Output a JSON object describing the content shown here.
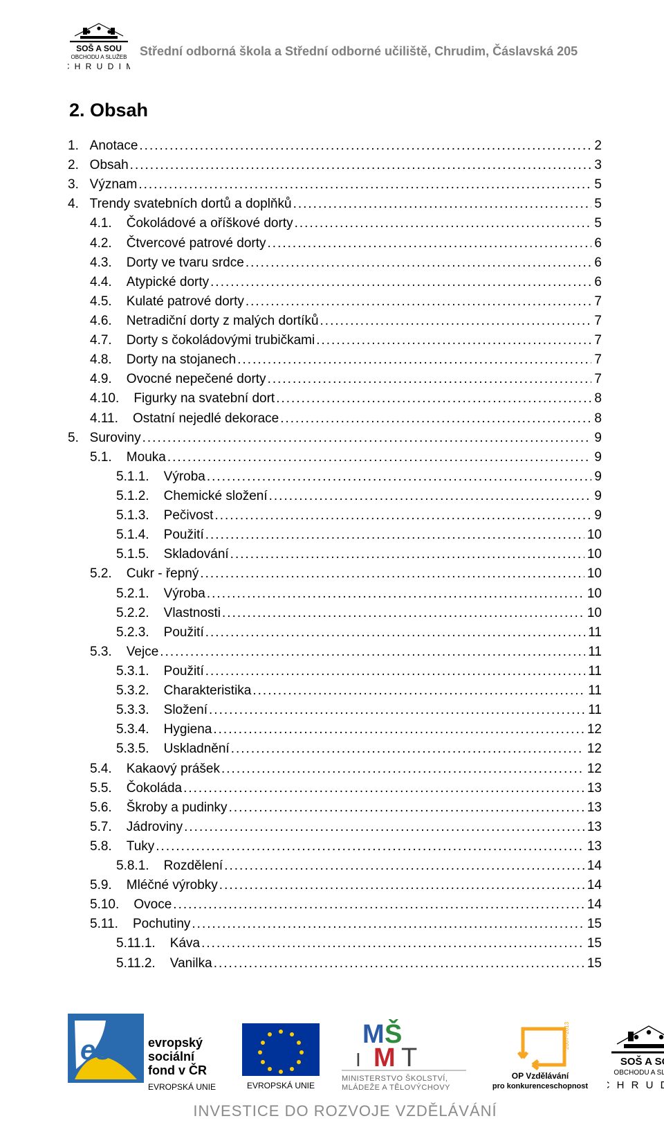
{
  "header": {
    "institution": "Střední odborná škola a Střední odborné učiliště, Chrudim, Čáslavská 205",
    "logo_lines": [
      "SOŠ A SOU",
      "OBCHODU A SLUŽEB",
      "C H R U D I M"
    ]
  },
  "heading": "2. Obsah",
  "colors": {
    "header_grey": "#7f7f7f",
    "text": "#000000",
    "footer_grey": "#8a8a8a",
    "esf_blue": "#2a6bb0",
    "esf_yellow": "#f2c500",
    "eu_blue": "#003399",
    "eu_star": "#ffcc00",
    "msmt_blue": "#2b5aa6",
    "msmt_green": "#2e8b3d",
    "msmt_red": "#c1272d",
    "op_orange": "#f5a623"
  },
  "toc": [
    {
      "n": "1.",
      "t": "Anotace",
      "p": "2",
      "l": 0
    },
    {
      "n": "2.",
      "t": "Obsah",
      "p": "3",
      "l": 0
    },
    {
      "n": "3.",
      "t": "Význam",
      "p": "5",
      "l": 0
    },
    {
      "n": "4.",
      "t": "Trendy svatebních dortů a doplňků",
      "p": "5",
      "l": 0
    },
    {
      "n": "4.1.",
      "t": "Čokoládové a oříškové dorty",
      "p": "5",
      "l": 1
    },
    {
      "n": "4.2.",
      "t": "Čtvercové patrové dorty",
      "p": "6",
      "l": 1
    },
    {
      "n": "4.3.",
      "t": "Dorty ve tvaru srdce",
      "p": "6",
      "l": 1
    },
    {
      "n": "4.4.",
      "t": "Atypické dorty",
      "p": "6",
      "l": 1
    },
    {
      "n": "4.5.",
      "t": "Kulaté patrové dorty",
      "p": "7",
      "l": 1
    },
    {
      "n": "4.6.",
      "t": "Netradiční dorty z malých dortíků",
      "p": "7",
      "l": 1
    },
    {
      "n": "4.7.",
      "t": "Dorty s čokoládovými trubičkami",
      "p": "7",
      "l": 1
    },
    {
      "n": "4.8.",
      "t": "Dorty na stojanech",
      "p": "7",
      "l": 1
    },
    {
      "n": "4.9.",
      "t": "Ovocné nepečené dorty",
      "p": "7",
      "l": 1
    },
    {
      "n": "4.10.",
      "t": "Figurky na svatební dort",
      "p": "8",
      "l": 1
    },
    {
      "n": "4.11.",
      "t": "Ostatní nejedlé dekorace",
      "p": "8",
      "l": 1
    },
    {
      "n": "5.",
      "t": "Suroviny",
      "p": "9",
      "l": 0
    },
    {
      "n": "5.1.",
      "t": "Mouka",
      "p": "9",
      "l": 1
    },
    {
      "n": "5.1.1.",
      "t": "Výroba",
      "p": "9",
      "l": 2
    },
    {
      "n": "5.1.2.",
      "t": "Chemické složení",
      "p": "9",
      "l": 2
    },
    {
      "n": "5.1.3.",
      "t": "Pečivost",
      "p": "9",
      "l": 2
    },
    {
      "n": "5.1.4.",
      "t": "Použití",
      "p": "10",
      "l": 2
    },
    {
      "n": "5.1.5.",
      "t": "Skladování",
      "p": "10",
      "l": 2
    },
    {
      "n": "5.2.",
      "t": "Cukr - řepný",
      "p": "10",
      "l": 1
    },
    {
      "n": "5.2.1.",
      "t": "Výroba",
      "p": "10",
      "l": 2
    },
    {
      "n": "5.2.2.",
      "t": "Vlastnosti",
      "p": "10",
      "l": 2
    },
    {
      "n": "5.2.3.",
      "t": "Použití",
      "p": "11",
      "l": 2
    },
    {
      "n": "5.3.",
      "t": "Vejce",
      "p": "11",
      "l": 1
    },
    {
      "n": "5.3.1.",
      "t": "Použití",
      "p": "11",
      "l": 2
    },
    {
      "n": "5.3.2.",
      "t": "Charakteristika",
      "p": "11",
      "l": 2
    },
    {
      "n": "5.3.3.",
      "t": "Složení",
      "p": "11",
      "l": 2
    },
    {
      "n": "5.3.4.",
      "t": "Hygiena",
      "p": "12",
      "l": 2
    },
    {
      "n": "5.3.5.",
      "t": "Uskladnění",
      "p": "12",
      "l": 2
    },
    {
      "n": "5.4.",
      "t": "Kakaový prášek",
      "p": "12",
      "l": 1
    },
    {
      "n": "5.5.",
      "t": "Čokoláda",
      "p": "13",
      "l": 1
    },
    {
      "n": "5.6.",
      "t": "Škroby a pudinky",
      "p": "13",
      "l": 1
    },
    {
      "n": "5.7.",
      "t": "Jádroviny",
      "p": "13",
      "l": 1
    },
    {
      "n": "5.8.",
      "t": "Tuky",
      "p": "13",
      "l": 1
    },
    {
      "n": "5.8.1.",
      "t": "Rozdělení",
      "p": "14",
      "l": 2
    },
    {
      "n": "5.9.",
      "t": "Mléčné výrobky",
      "p": "14",
      "l": 1
    },
    {
      "n": "5.10.",
      "t": "Ovoce",
      "p": "14",
      "l": 1
    },
    {
      "n": "5.11.",
      "t": "Pochutiny",
      "p": "15",
      "l": 1
    },
    {
      "n": "5.11.1.",
      "t": "Káva",
      "p": "15",
      "l": 2
    },
    {
      "n": "5.11.2.",
      "t": "Vanilka",
      "p": "15",
      "l": 2
    }
  ],
  "footer": {
    "caption": "INVESTICE DO ROZVOJE VZDĚLÁVÁNÍ",
    "esf": {
      "line1": "evropský",
      "line2": "sociální",
      "line3": "fond v ČR",
      "sub": "EVROPSKÁ UNIE"
    },
    "msmt": {
      "line1": "MINISTERSTVO ŠKOLSTVÍ,",
      "line2": "MLÁDEŽE A TĚLOVÝCHOVY"
    },
    "op": {
      "line1": "OP Vzdělávání",
      "line2": "pro konkurenceschopnost"
    },
    "school": {
      "l1": "SOŠ A SOU",
      "l2": "OBCHODU A SLUŽEB",
      "l3": "C H R U D I M"
    }
  }
}
